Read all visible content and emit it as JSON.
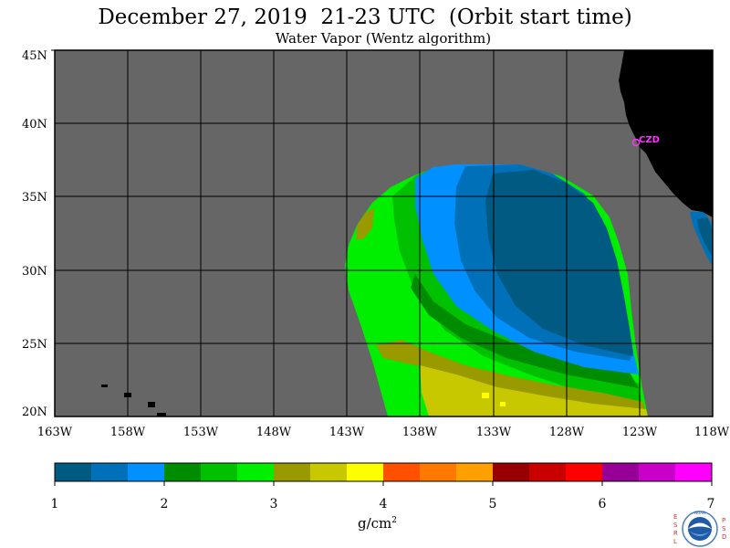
{
  "header": {
    "title": "December 27, 2019  21-23 UTC  (Orbit start time)",
    "subtitle": "Water Vapor (Wentz algorithm)"
  },
  "map": {
    "lat_labels": [
      "45N",
      "40N",
      "35N",
      "30N",
      "25N",
      "20N"
    ],
    "lon_labels": [
      "163W",
      "158W",
      "153W",
      "148W",
      "143W",
      "138W",
      "133W",
      "128W",
      "123W",
      "118W"
    ],
    "station_label": "CZD",
    "colors": {
      "no_data": "#666666",
      "land": "#000000",
      "grid": "#000000",
      "station": "#ff33ff"
    }
  },
  "colorbar": {
    "tick_labels": [
      "1",
      "2",
      "3",
      "4",
      "5",
      "6",
      "7"
    ],
    "units_base": "g/cm",
    "units_exp": "2",
    "colors": [
      "#005a82",
      "#0070b8",
      "#0090ff",
      "#008c00",
      "#00c000",
      "#00ee00",
      "#999900",
      "#c8c800",
      "#ffff00",
      "#ff5000",
      "#ff7800",
      "#ffa000",
      "#960000",
      "#c80000",
      "#ff0000",
      "#960096",
      "#c800c8",
      "#ff00ff"
    ]
  },
  "logo": {
    "left_letters": [
      "E",
      "S",
      "R",
      "L"
    ],
    "right_letters": [
      "P",
      "S",
      "D"
    ],
    "center_text": "NOAA"
  }
}
